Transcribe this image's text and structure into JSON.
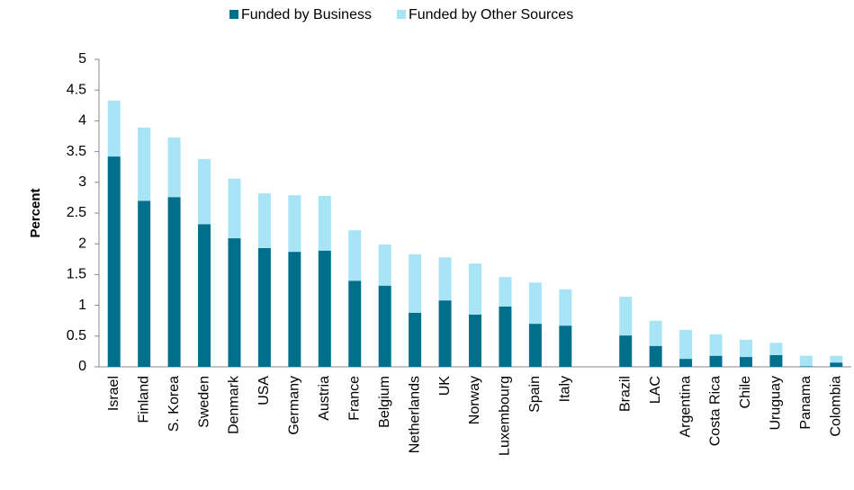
{
  "chart_data": {
    "type": "stacked_bar",
    "y_label": "Percent",
    "categories": [
      "Israel",
      "Finland",
      "S. Korea",
      "Sweden",
      "Denmark",
      "USA",
      "Germany",
      "Austria",
      "France",
      "Belgium",
      "Netherlands",
      "UK",
      "Norway",
      "Luxembourg",
      "Spain",
      "Italy",
      null,
      "Brazil",
      "LAC",
      "Argentina",
      "Costa Rica",
      "Chile",
      "Uruguay",
      "Panama",
      "Colombia"
    ],
    "series": [
      {
        "name": "Funded by Business",
        "color": "#006f8c",
        "values": [
          3.42,
          2.7,
          2.76,
          2.32,
          2.09,
          1.93,
          1.87,
          1.89,
          1.4,
          1.32,
          0.88,
          1.08,
          0.85,
          0.98,
          0.7,
          0.67,
          null,
          0.51,
          0.34,
          0.13,
          0.18,
          0.16,
          0.19,
          0.01,
          0.07
        ]
      },
      {
        "name": "Funded by Other Sources",
        "color": "#a6e4f6",
        "values": [
          0.91,
          1.19,
          0.97,
          1.06,
          0.97,
          0.89,
          0.92,
          0.89,
          0.82,
          0.67,
          0.95,
          0.7,
          0.83,
          0.48,
          0.67,
          0.59,
          null,
          0.63,
          0.41,
          0.47,
          0.35,
          0.28,
          0.2,
          0.17,
          0.11
        ]
      }
    ],
    "ylim": [
      0,
      5
    ],
    "yticks": [
      0,
      0.5,
      1,
      1.5,
      2,
      2.5,
      3,
      3.5,
      4,
      4.5,
      5
    ],
    "grid": false
  }
}
